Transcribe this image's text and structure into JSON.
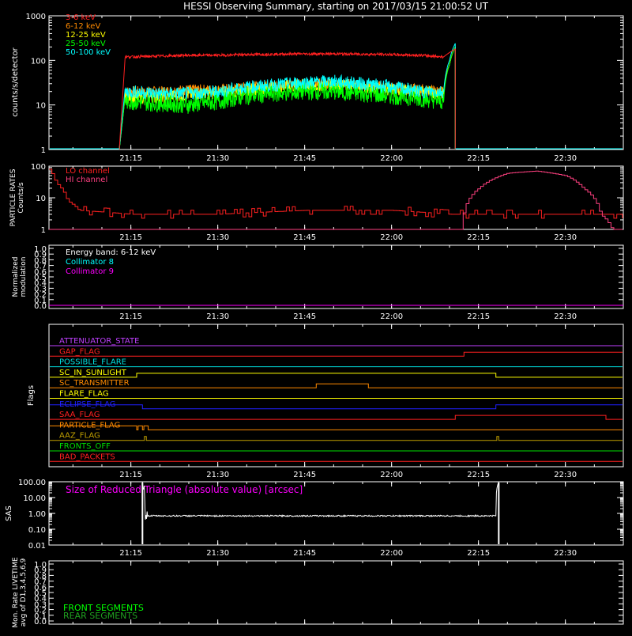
{
  "title": "HESSI Observing Summary, starting on 2017/03/15 21:00:52 UT",
  "time_ticks": [
    "21:15",
    "21:30",
    "21:45",
    "22:00",
    "22:15",
    "22:30"
  ],
  "colors": {
    "axis": "#ffffff",
    "band_3_6": "#ff2020",
    "band_6_12": "#ff8a00",
    "band_12_25": "#ffff00",
    "band_25_50": "#00ff00",
    "band_50_100": "#00ffff",
    "lo_channel": "#ff2020",
    "hi_channel": "#ff4080",
    "collimator8": "#00ffff",
    "collimator9": "#ff00ff",
    "sas": "#ff00ff"
  },
  "panels": {
    "count_rates": {
      "ylabel": "counts/s/detector",
      "ytick_labels": [
        "1",
        "10",
        "100",
        "1000"
      ],
      "legend": [
        "3-6 keV",
        "6-12 keV",
        "12-25 keV",
        "25-50 keV",
        "50-100 keV"
      ]
    },
    "particle_rates": {
      "ylabel_line1": "PARTICLE RATES",
      "ylabel_line2": "Counts/s",
      "ytick_labels": [
        "1",
        "10",
        "100"
      ],
      "legend": [
        "LO channel",
        "HI channel"
      ]
    },
    "modulation": {
      "ylabel_line1": "Normalized",
      "ylabel_line2": "modulation",
      "ytick_labels": [
        "0.0",
        "0.1",
        "0.2",
        "0.3",
        "0.4",
        "0.5",
        "0.6",
        "0.7",
        "0.8",
        "0.9",
        "1.0"
      ],
      "legend": [
        "Energy band: 6-12 keV",
        "Collimator 8",
        "Collimator 9"
      ]
    },
    "flags": {
      "ylabel": "Flags",
      "items": [
        {
          "name": "ATTENUATOR_STATE",
          "color": "#c040ff"
        },
        {
          "name": "GAP_FLAG",
          "color": "#ff2020"
        },
        {
          "name": "POSSIBLE_FLARE",
          "color": "#00e0e0"
        },
        {
          "name": "SC_IN_SUNLIGHT",
          "color": "#ffff00"
        },
        {
          "name": "SC_TRANSMITTER",
          "color": "#ff8a00"
        },
        {
          "name": "FLARE_FLAG",
          "color": "#ffff00"
        },
        {
          "name": "ECLIPSE_FLAG",
          "color": "#2020ff"
        },
        {
          "name": "SAA_FLAG",
          "color": "#ff2020"
        },
        {
          "name": "PARTICLE_FLAG",
          "color": "#ff8a00"
        },
        {
          "name": "AAZ_FLAG",
          "color": "#c0a000"
        },
        {
          "name": "FRONTS_OFF",
          "color": "#00e000"
        },
        {
          "name": "BAD_PACKETS",
          "color": "#ff2020"
        }
      ]
    },
    "sas": {
      "ylabel": "SAS",
      "title": "Size of Reduced Triangle (absolute value) [arcsec]",
      "ytick_labels": [
        "0.01",
        "0.10",
        "1.00",
        "10.00",
        "100.00"
      ]
    },
    "livetime": {
      "ylabel_line1": "Mon. Rate LIVETIME",
      "ylabel_line2": "avg of D1,3,4,5,6,9",
      "ytick_labels": [
        "0.0",
        "0.1",
        "0.2",
        "0.3",
        "0.4",
        "0.5",
        "0.6",
        "0.7",
        "0.8",
        "0.9",
        "1.0"
      ],
      "legend": [
        "FRONT SEGMENTS",
        "REAR SEGMENTS"
      ],
      "legend_colors": [
        "#00ff00",
        "#20a020"
      ]
    }
  },
  "chart_data": [
    {
      "type": "line",
      "title": "HESSI Observing Summary, starting on 2017/03/15 21:00:52 UT",
      "ylabel": "counts/s/detector",
      "yscale": "log",
      "ylim": [
        1,
        1000
      ],
      "xlim": [
        "21:00:52",
        "22:40:00"
      ],
      "x": [
        "21:13",
        "21:14",
        "21:15",
        "21:20",
        "21:25",
        "21:30",
        "21:35",
        "21:40",
        "21:45",
        "21:50",
        "21:55",
        "22:00",
        "22:05",
        "22:09",
        "22:10",
        "22:11"
      ],
      "series": [
        {
          "name": "3-6 keV",
          "values": [
            1,
            120,
            120,
            125,
            130,
            130,
            135,
            138,
            140,
            140,
            138,
            135,
            130,
            120,
            150,
            180
          ]
        },
        {
          "name": "6-12 keV",
          "values": [
            1,
            20,
            20,
            20,
            22,
            22,
            25,
            28,
            30,
            30,
            28,
            25,
            22,
            20,
            80,
            200
          ]
        },
        {
          "name": "12-25 keV",
          "values": [
            1,
            15,
            15,
            15,
            17,
            18,
            22,
            25,
            27,
            28,
            25,
            22,
            20,
            18,
            80,
            200
          ]
        },
        {
          "name": "25-50 keV",
          "values": [
            1,
            12,
            12,
            11,
            10,
            12,
            16,
            18,
            20,
            20,
            18,
            16,
            14,
            12,
            80,
            200
          ]
        },
        {
          "name": "50-100 keV",
          "values": [
            1,
            20,
            20,
            18,
            18,
            20,
            25,
            28,
            32,
            34,
            30,
            25,
            20,
            20,
            100,
            240
          ]
        }
      ]
    },
    {
      "type": "line",
      "ylabel": "PARTICLE RATES Counts/s",
      "yscale": "log",
      "ylim": [
        1,
        100
      ],
      "x": [
        "21:00:52",
        "21:02",
        "21:04",
        "21:06",
        "21:15",
        "21:30",
        "21:45",
        "22:00",
        "22:10",
        "22:12",
        "22:15",
        "22:20",
        "22:25",
        "22:30",
        "22:33",
        "22:36",
        "22:38"
      ],
      "series": [
        {
          "name": "LO channel",
          "values": [
            80,
            30,
            8,
            4,
            3,
            3,
            4,
            4,
            3,
            3,
            3,
            3,
            3,
            3,
            3,
            3,
            3
          ]
        },
        {
          "name": "HI channel",
          "values": [
            1,
            1,
            1,
            1,
            1,
            1,
            1,
            1,
            1,
            1,
            20,
            60,
            70,
            50,
            20,
            3,
            1
          ]
        }
      ]
    },
    {
      "type": "line",
      "ylabel": "Normalized modulation",
      "ylim": [
        0,
        1
      ],
      "x": [
        "21:00:52",
        "22:40:00"
      ],
      "series": [
        {
          "name": "Collimator 9",
          "values": [
            0,
            0
          ]
        }
      ]
    },
    {
      "type": "line",
      "ylabel": "SAS",
      "yscale": "log",
      "ylim": [
        0.01,
        100
      ],
      "x": [
        "21:17",
        "21:17:30",
        "21:18",
        "21:30",
        "21:45",
        "22:00",
        "22:15",
        "22:18",
        "22:18:30"
      ],
      "series": [
        {
          "name": "Size of Reduced Triangle (absolute value) [arcsec]",
          "values": [
            100,
            1.0,
            0.7,
            0.7,
            0.7,
            0.7,
            0.7,
            0.7,
            100
          ]
        }
      ]
    }
  ]
}
